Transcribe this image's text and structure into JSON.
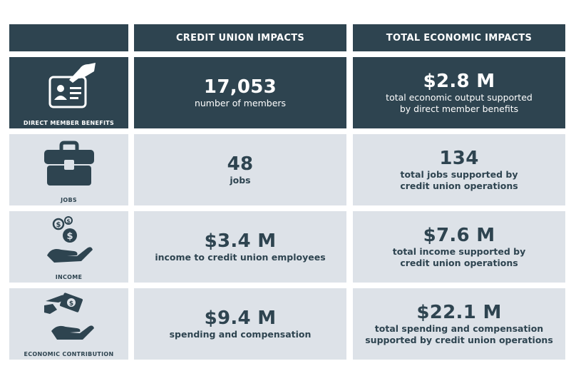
{
  "header": {
    "col1": "CREDIT UNION IMPACTS",
    "col2": "TOTAL ECONOMIC IMPACTS"
  },
  "rows": [
    {
      "label": "DIRECT MEMBER BENEFITS",
      "icon": "id-card-hand-icon",
      "cu_value": "17,053",
      "cu_desc": "number of members",
      "total_value": "$2.8 M",
      "total_desc_1": "total economic output supported",
      "total_desc_2": "by direct member benefits"
    },
    {
      "label": "JOBS",
      "icon": "briefcase-icon",
      "cu_value": "48",
      "cu_desc": "jobs",
      "total_value": "134",
      "total_desc_1": "total jobs supported by",
      "total_desc_2": "credit union operations"
    },
    {
      "label": "INCOME",
      "icon": "hand-coins-icon",
      "cu_value": "$3.4 M",
      "cu_desc": "income to credit union employees",
      "total_value": "$7.6 M",
      "total_desc_1": "total income supported by",
      "total_desc_2": "credit union operations"
    },
    {
      "label": "ECONOMIC CONTRIBUTION",
      "icon": "money-exchange-icon",
      "cu_value": "$9.4 M",
      "cu_desc": "spending and compensation",
      "total_value": "$22.1 M",
      "total_desc_1": "total spending and compensation",
      "total_desc_2": "supported by credit union operations"
    }
  ],
  "colors": {
    "dark": "#2e4450",
    "light": "#dde2e8",
    "white": "#ffffff"
  }
}
